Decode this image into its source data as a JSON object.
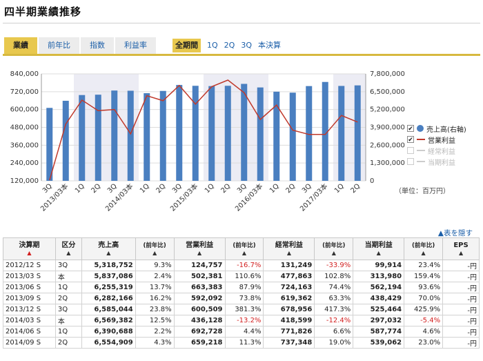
{
  "page": {
    "title": "四半期業績推移"
  },
  "tabs": [
    {
      "label": "業績",
      "active": true
    },
    {
      "label": "前年比",
      "active": false
    },
    {
      "label": "指数",
      "active": false
    },
    {
      "label": "利益率",
      "active": false
    }
  ],
  "periods": [
    {
      "label": "全期間",
      "active": true
    },
    {
      "label": "1Q",
      "active": false
    },
    {
      "label": "2Q",
      "active": false
    },
    {
      "label": "3Q",
      "active": false
    },
    {
      "label": "本決算",
      "active": false
    }
  ],
  "legend": [
    {
      "label": "売上高(右軸)",
      "checked": true,
      "marker": "dot",
      "color": "#4a7fc0"
    },
    {
      "label": "営業利益",
      "checked": true,
      "marker": "line",
      "color": "#c0392b"
    },
    {
      "label": "経常利益",
      "checked": false,
      "marker": "line",
      "color": "#cccccc"
    },
    {
      "label": "当期利益",
      "checked": false,
      "marker": "line",
      "color": "#cccccc"
    }
  ],
  "unit_label": "（単位：百万円）",
  "hide_table_link": "▲表を隠す",
  "chart_data": {
    "type": "bar",
    "categories": [
      "3Q",
      "2013/03本",
      "1Q",
      "2Q",
      "3Q",
      "2014/03本",
      "1Q",
      "2Q",
      "3Q",
      "2015/03本",
      "1Q",
      "2Q",
      "3Q",
      "2016/03本",
      "1Q",
      "2Q",
      "3Q",
      "2017/03本",
      "1Q",
      "2Q"
    ],
    "series": [
      {
        "name": "売上高(右軸)",
        "type": "bar",
        "axis": "right",
        "color": "#4a7fc0",
        "values": [
          5318752,
          5837086,
          6255319,
          6282166,
          6585044,
          6569382,
          6390688,
          6554909,
          6990000,
          6930000,
          6910000,
          6930000,
          7070000,
          6810000,
          6500000,
          6430000,
          6910000,
          7210000,
          6920000,
          6960000
        ]
      },
      {
        "name": "営業利益",
        "type": "line",
        "axis": "left",
        "color": "#c0392b",
        "values": [
          124757,
          502381,
          663383,
          592092,
          600509,
          436128,
          692728,
          659218,
          762000,
          636000,
          754000,
          798000,
          713000,
          533000,
          630000,
          461000,
          432000,
          432000,
          560000,
          516000
        ]
      }
    ],
    "left_axis": {
      "min": 120000,
      "max": 840000,
      "ticks": [
        "840,000",
        "720,000",
        "600,000",
        "480,000",
        "360,000",
        "240,000",
        "120,000"
      ]
    },
    "right_axis": {
      "min": 0,
      "max": 7800000,
      "ticks": [
        "7,800,000",
        "6,500,000",
        "5,200,000",
        "3,900,000",
        "2,600,000",
        "1,300,000",
        "0"
      ]
    },
    "shaded_groups": [
      [
        2,
        5
      ],
      [
        10,
        13
      ],
      [
        18,
        19
      ]
    ],
    "grid": true
  },
  "table": {
    "headers": [
      {
        "label": "決算期",
        "arrow": "▲",
        "arrow_red": true
      },
      {
        "label": "区分",
        "arrow": "▲"
      },
      {
        "label": "売上高",
        "arrow": "▲"
      },
      {
        "label": "(前年比)",
        "arrow": "▲",
        "small": true
      },
      {
        "label": "営業利益",
        "arrow": "▲"
      },
      {
        "label": "(前年比)",
        "arrow": "▲",
        "small": true
      },
      {
        "label": "経常利益",
        "arrow": "▲"
      },
      {
        "label": "(前年比)",
        "arrow": "▲",
        "small": true
      },
      {
        "label": "当期利益",
        "arrow": "▲"
      },
      {
        "label": "(前年比)",
        "arrow": "▲",
        "small": true
      },
      {
        "label": "EPS",
        "arrow": "▲"
      }
    ],
    "rows": [
      [
        "2012/12 S",
        "3Q",
        "5,318,752",
        "9.3%",
        "124,757",
        "-16.7%",
        "131,249",
        "-33.9%",
        "99,914",
        "23.4%",
        "-円"
      ],
      [
        "2013/03 S",
        "本",
        "5,837,086",
        "2.4%",
        "502,381",
        "110.6%",
        "477,863",
        "102.8%",
        "313,980",
        "159.4%",
        "-円"
      ],
      [
        "2013/06 S",
        "1Q",
        "6,255,319",
        "13.7%",
        "663,383",
        "87.9%",
        "724,163",
        "74.4%",
        "562,194",
        "93.6%",
        "-円"
      ],
      [
        "2013/09 S",
        "2Q",
        "6,282,166",
        "16.2%",
        "592,092",
        "73.8%",
        "619,362",
        "63.3%",
        "438,429",
        "70.0%",
        "-円"
      ],
      [
        "2013/12 S",
        "3Q",
        "6,585,044",
        "23.8%",
        "600,509",
        "381.3%",
        "678,956",
        "417.3%",
        "525,464",
        "425.9%",
        "-円"
      ],
      [
        "2014/03 S",
        "本",
        "6,569,382",
        "12.5%",
        "436,128",
        "-13.2%",
        "418,599",
        "-12.4%",
        "297,032",
        "-5.4%",
        "-円"
      ],
      [
        "2014/06 S",
        "1Q",
        "6,390,688",
        "2.2%",
        "692,728",
        "4.4%",
        "771,826",
        "6.6%",
        "587,774",
        "4.6%",
        "-円"
      ],
      [
        "2014/09 S",
        "2Q",
        "6,554,909",
        "4.3%",
        "659,218",
        "11.3%",
        "737,348",
        "19.0%",
        "539,062",
        "23.0%",
        "-円"
      ]
    ]
  }
}
